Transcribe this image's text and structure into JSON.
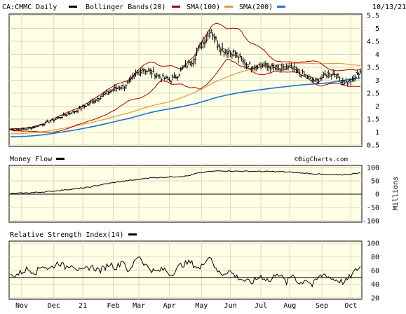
{
  "header": {
    "symbol_label": "CA:CMMC Daily",
    "indicator_bb": "Bollinger Bands(20)",
    "indicator_sma100": "SMA(100)",
    "indicator_sma200": "SMA(200)",
    "date": "10/13/21"
  },
  "colors": {
    "panel_bg": "#ffffe6",
    "grid": "#d9d9c0",
    "bollinger": "#aa0000",
    "sma100": "#e09a3a",
    "sma200": "#1f6fd6",
    "price": "#000000"
  },
  "panels": {
    "money_flow_title": "Money Flow",
    "money_flow_unit": "Millions",
    "rsi_title": "Relative Strength Index(14)",
    "watermark": "©BigCharts.com"
  },
  "chart_data": [
    {
      "type": "ohlc",
      "title": "CA:CMMC Daily",
      "ylim": [
        0.5,
        5.5
      ],
      "yticks": [
        5.5,
        5.0,
        4.5,
        4.0,
        3.5,
        3.0,
        2.5,
        2.0,
        1.5,
        1.0,
        0.5
      ],
      "x_tick_labels": [
        "Nov",
        "Dec",
        "21",
        "Feb",
        "Mar",
        "Apr",
        "May",
        "Jun",
        "Jul",
        "Aug",
        "Sep",
        "Oct"
      ],
      "close_keypoints": [
        [
          0,
          1.1
        ],
        [
          6,
          1.1
        ],
        [
          12,
          1.15
        ],
        [
          20,
          1.3
        ],
        [
          28,
          1.5
        ],
        [
          34,
          1.65
        ],
        [
          40,
          1.8
        ],
        [
          48,
          2.05
        ],
        [
          54,
          2.3
        ],
        [
          60,
          2.5
        ],
        [
          66,
          2.7
        ],
        [
          70,
          2.75
        ],
        [
          74,
          2.9
        ],
        [
          78,
          3.2
        ],
        [
          82,
          3.45
        ],
        [
          88,
          3.3
        ],
        [
          94,
          3.1
        ],
        [
          100,
          3.0
        ],
        [
          104,
          3.2
        ],
        [
          108,
          3.5
        ],
        [
          114,
          3.8
        ],
        [
          118,
          4.3
        ],
        [
          122,
          4.6
        ],
        [
          125,
          4.95
        ],
        [
          128,
          4.55
        ],
        [
          132,
          4.2
        ],
        [
          136,
          4.1
        ],
        [
          140,
          4.05
        ],
        [
          144,
          3.75
        ],
        [
          150,
          3.55
        ],
        [
          156,
          3.6
        ],
        [
          162,
          3.5
        ],
        [
          168,
          3.4
        ],
        [
          174,
          3.5
        ],
        [
          180,
          3.3
        ],
        [
          186,
          3.1
        ],
        [
          190,
          2.95
        ],
        [
          196,
          3.2
        ],
        [
          202,
          3.25
        ],
        [
          206,
          3.0
        ],
        [
          210,
          2.9
        ],
        [
          214,
          3.05
        ],
        [
          218,
          3.35
        ]
      ],
      "series": [
        {
          "name": "Bollinger Bands(20)",
          "color": "#aa0000"
        },
        {
          "name": "SMA(100)",
          "color": "#e09a3a"
        },
        {
          "name": "SMA(200)",
          "color": "#1f6fd6"
        }
      ]
    },
    {
      "type": "line",
      "title": "Money Flow",
      "ylabel": "Millions",
      "ylim": [
        -100,
        100
      ],
      "yticks": [
        100,
        50,
        0,
        -50,
        -100
      ],
      "keypoints": [
        [
          0,
          2
        ],
        [
          12,
          5
        ],
        [
          24,
          10
        ],
        [
          32,
          15
        ],
        [
          40,
          20
        ],
        [
          48,
          25
        ],
        [
          56,
          35
        ],
        [
          66,
          45
        ],
        [
          72,
          50
        ],
        [
          80,
          55
        ],
        [
          84,
          60
        ],
        [
          90,
          62
        ],
        [
          100,
          65
        ],
        [
          110,
          68
        ],
        [
          116,
          78
        ],
        [
          124,
          85
        ],
        [
          132,
          88
        ],
        [
          140,
          86
        ],
        [
          150,
          86
        ],
        [
          160,
          85
        ],
        [
          170,
          84
        ],
        [
          180,
          80
        ],
        [
          190,
          76
        ],
        [
          200,
          72
        ],
        [
          210,
          74
        ],
        [
          218,
          80
        ]
      ]
    },
    {
      "type": "line",
      "title": "Relative Strength Index(14)",
      "ylim": [
        20,
        100
      ],
      "yticks": [
        100,
        80,
        60,
        40,
        20
      ],
      "reference_line": 50,
      "keypoints": [
        [
          0,
          52
        ],
        [
          5,
          55
        ],
        [
          10,
          62
        ],
        [
          16,
          58
        ],
        [
          20,
          68
        ],
        [
          24,
          62
        ],
        [
          30,
          72
        ],
        [
          34,
          65
        ],
        [
          38,
          70
        ],
        [
          44,
          58
        ],
        [
          50,
          66
        ],
        [
          56,
          60
        ],
        [
          62,
          70
        ],
        [
          66,
          64
        ],
        [
          70,
          76
        ],
        [
          74,
          56
        ],
        [
          78,
          78
        ],
        [
          80,
          82
        ],
        [
          84,
          68
        ],
        [
          90,
          58
        ],
        [
          96,
          62
        ],
        [
          100,
          54
        ],
        [
          106,
          68
        ],
        [
          112,
          72
        ],
        [
          118,
          62
        ],
        [
          122,
          78
        ],
        [
          125,
          80
        ],
        [
          128,
          60
        ],
        [
          132,
          55
        ],
        [
          136,
          60
        ],
        [
          140,
          52
        ],
        [
          146,
          45
        ],
        [
          150,
          42
        ],
        [
          156,
          52
        ],
        [
          162,
          44
        ],
        [
          166,
          58
        ],
        [
          172,
          42
        ],
        [
          176,
          55
        ],
        [
          180,
          40
        ],
        [
          184,
          48
        ],
        [
          188,
          38
        ],
        [
          192,
          50
        ],
        [
          196,
          55
        ],
        [
          200,
          48
        ],
        [
          204,
          46
        ],
        [
          208,
          42
        ],
        [
          212,
          52
        ],
        [
          216,
          62
        ],
        [
          218,
          66
        ]
      ]
    }
  ]
}
